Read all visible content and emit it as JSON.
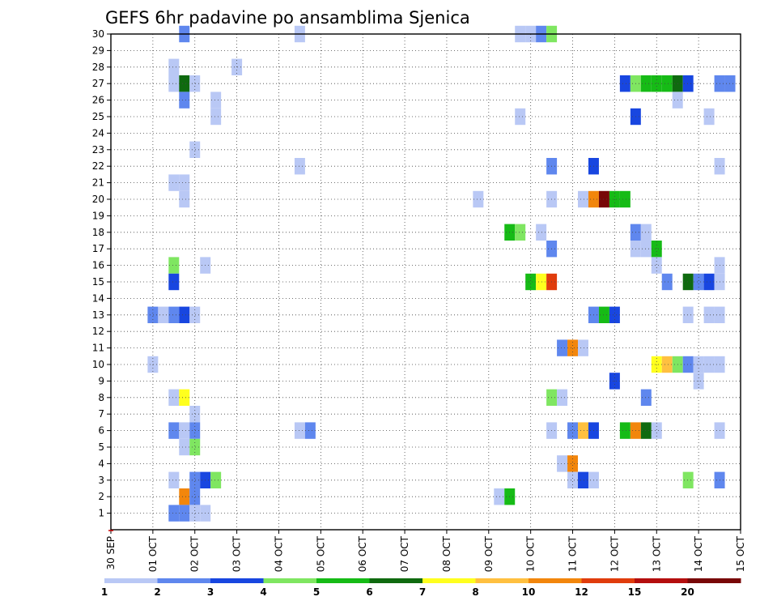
{
  "chart_data": {
    "type": "heatmap",
    "title": "GEFS 6hr padavine po ansamblima Sjenica",
    "xlabel": "",
    "ylabel": "",
    "x_tick_labels": [
      "30 SEP",
      "01 OCT",
      "02 OCT",
      "03 OCT",
      "04 OCT",
      "05 OCT",
      "06 OCT",
      "07 OCT",
      "08 OCT",
      "09 OCT",
      "10 OCT",
      "11 OCT",
      "12 OCT",
      "13 OCT",
      "14 OCT",
      "15 OCT"
    ],
    "y_tick_labels": [
      "1",
      "2",
      "3",
      "4",
      "5",
      "6",
      "7",
      "8",
      "9",
      "10",
      "11",
      "12",
      "13",
      "14",
      "15",
      "16",
      "17",
      "18",
      "19",
      "20",
      "21",
      "22",
      "23",
      "24",
      "25",
      "26",
      "27",
      "28",
      "29",
      "30"
    ],
    "x_range_days": [
      0,
      15
    ],
    "y_range": [
      0,
      30
    ],
    "grid": "dotted",
    "colorbar": {
      "labels": [
        "1",
        "2",
        "3",
        "4",
        "5",
        "6",
        "7",
        "8",
        "10",
        "12",
        "15",
        "20"
      ],
      "colors": [
        "#b9c8f5",
        "#5f87ee",
        "#1846e0",
        "#7fe661",
        "#16bb16",
        "#0f6a0f",
        "#ffff1e",
        "#ffc040",
        "#f2860c",
        "#e03c0c",
        "#b40e0e",
        "#780707"
      ]
    },
    "cells": [
      {
        "m": 30,
        "x": 1.75,
        "c": 1
      },
      {
        "m": 30,
        "x": 4.5,
        "c": 0
      },
      {
        "m": 30,
        "x": 9.75,
        "c": 0
      },
      {
        "m": 30,
        "x": 10,
        "c": 0
      },
      {
        "m": 30,
        "x": 10.25,
        "c": 1
      },
      {
        "m": 30,
        "x": 10.5,
        "c": 3
      },
      {
        "m": 28,
        "x": 1.5,
        "c": 0
      },
      {
        "m": 28,
        "x": 3,
        "c": 0
      },
      {
        "m": 27,
        "x": 1.5,
        "c": 0
      },
      {
        "m": 27,
        "x": 1.75,
        "c": 5
      },
      {
        "m": 27,
        "x": 2,
        "c": 0
      },
      {
        "m": 27,
        "x": 12.25,
        "c": 2
      },
      {
        "m": 27,
        "x": 12.5,
        "c": 3
      },
      {
        "m": 27,
        "x": 12.75,
        "c": 4
      },
      {
        "m": 27,
        "x": 13,
        "c": 4
      },
      {
        "m": 27,
        "x": 13.25,
        "c": 4
      },
      {
        "m": 27,
        "x": 13.5,
        "c": 5
      },
      {
        "m": 27,
        "x": 13.75,
        "c": 2
      },
      {
        "m": 27,
        "x": 14.5,
        "c": 1
      },
      {
        "m": 27,
        "x": 14.75,
        "c": 1
      },
      {
        "m": 26,
        "x": 1.75,
        "c": 1
      },
      {
        "m": 26,
        "x": 2.5,
        "c": 0
      },
      {
        "m": 26,
        "x": 13.5,
        "c": 0
      },
      {
        "m": 25,
        "x": 2.5,
        "c": 0
      },
      {
        "m": 25,
        "x": 9.75,
        "c": 0
      },
      {
        "m": 25,
        "x": 12.5,
        "c": 2
      },
      {
        "m": 25,
        "x": 14.25,
        "c": 0
      },
      {
        "m": 23,
        "x": 2,
        "c": 0
      },
      {
        "m": 22,
        "x": 4.5,
        "c": 0
      },
      {
        "m": 22,
        "x": 10.5,
        "c": 1
      },
      {
        "m": 22,
        "x": 11.5,
        "c": 2
      },
      {
        "m": 22,
        "x": 14.5,
        "c": 0
      },
      {
        "m": 21,
        "x": 1.5,
        "c": 0
      },
      {
        "m": 21,
        "x": 1.75,
        "c": 0
      },
      {
        "m": 20,
        "x": 1.75,
        "c": 0
      },
      {
        "m": 20,
        "x": 8.75,
        "c": 0
      },
      {
        "m": 20,
        "x": 10.5,
        "c": 0
      },
      {
        "m": 20,
        "x": 11.25,
        "c": 0
      },
      {
        "m": 20,
        "x": 11.5,
        "c": 8
      },
      {
        "m": 20,
        "x": 11.75,
        "c": 11
      },
      {
        "m": 20,
        "x": 12,
        "c": 4
      },
      {
        "m": 20,
        "x": 12.25,
        "c": 4
      },
      {
        "m": 18,
        "x": 9.5,
        "c": 4
      },
      {
        "m": 18,
        "x": 9.75,
        "c": 3
      },
      {
        "m": 18,
        "x": 10.25,
        "c": 0
      },
      {
        "m": 18,
        "x": 12.5,
        "c": 1
      },
      {
        "m": 18,
        "x": 12.75,
        "c": 0
      },
      {
        "m": 17,
        "x": 10.5,
        "c": 1
      },
      {
        "m": 17,
        "x": 12.5,
        "c": 0
      },
      {
        "m": 17,
        "x": 12.75,
        "c": 0
      },
      {
        "m": 17,
        "x": 13,
        "c": 4
      },
      {
        "m": 16,
        "x": 1.5,
        "c": 3
      },
      {
        "m": 16,
        "x": 2.25,
        "c": 0
      },
      {
        "m": 16,
        "x": 13,
        "c": 0
      },
      {
        "m": 16,
        "x": 14.5,
        "c": 0
      },
      {
        "m": 15,
        "x": 1.5,
        "c": 2
      },
      {
        "m": 15,
        "x": 10,
        "c": 4
      },
      {
        "m": 15,
        "x": 10.25,
        "c": 6
      },
      {
        "m": 15,
        "x": 10.5,
        "c": 9
      },
      {
        "m": 15,
        "x": 13.25,
        "c": 1
      },
      {
        "m": 15,
        "x": 13.75,
        "c": 5
      },
      {
        "m": 15,
        "x": 14,
        "c": 1
      },
      {
        "m": 15,
        "x": 14.25,
        "c": 2
      },
      {
        "m": 15,
        "x": 14.5,
        "c": 0
      },
      {
        "m": 13,
        "x": 1,
        "c": 1
      },
      {
        "m": 13,
        "x": 1.25,
        "c": 0
      },
      {
        "m": 13,
        "x": 1.5,
        "c": 1
      },
      {
        "m": 13,
        "x": 1.75,
        "c": 2
      },
      {
        "m": 13,
        "x": 2,
        "c": 0
      },
      {
        "m": 13,
        "x": 11.5,
        "c": 1
      },
      {
        "m": 13,
        "x": 11.75,
        "c": 4
      },
      {
        "m": 13,
        "x": 12,
        "c": 2
      },
      {
        "m": 13,
        "x": 13.75,
        "c": 0
      },
      {
        "m": 13,
        "x": 14.25,
        "c": 0
      },
      {
        "m": 13,
        "x": 14.5,
        "c": 0
      },
      {
        "m": 11,
        "x": 10.75,
        "c": 1
      },
      {
        "m": 11,
        "x": 11,
        "c": 8
      },
      {
        "m": 11,
        "x": 11.25,
        "c": 0
      },
      {
        "m": 10,
        "x": 1,
        "c": 0
      },
      {
        "m": 10,
        "x": 13,
        "c": 6
      },
      {
        "m": 10,
        "x": 13.25,
        "c": 7
      },
      {
        "m": 10,
        "x": 13.5,
        "c": 3
      },
      {
        "m": 10,
        "x": 13.75,
        "c": 1
      },
      {
        "m": 10,
        "x": 14,
        "c": 0
      },
      {
        "m": 10,
        "x": 14.25,
        "c": 0
      },
      {
        "m": 10,
        "x": 14.5,
        "c": 0
      },
      {
        "m": 9,
        "x": 12,
        "c": 2
      },
      {
        "m": 9,
        "x": 14,
        "c": 0
      },
      {
        "m": 8,
        "x": 1.5,
        "c": 0
      },
      {
        "m": 8,
        "x": 1.75,
        "c": 6
      },
      {
        "m": 8,
        "x": 10.5,
        "c": 3
      },
      {
        "m": 8,
        "x": 10.75,
        "c": 0
      },
      {
        "m": 8,
        "x": 12.75,
        "c": 1
      },
      {
        "m": 7,
        "x": 2,
        "c": 0
      },
      {
        "m": 6,
        "x": 1.5,
        "c": 1
      },
      {
        "m": 6,
        "x": 1.75,
        "c": 0
      },
      {
        "m": 6,
        "x": 2,
        "c": 1
      },
      {
        "m": 6,
        "x": 4.5,
        "c": 0
      },
      {
        "m": 6,
        "x": 4.75,
        "c": 1
      },
      {
        "m": 6,
        "x": 10.5,
        "c": 0
      },
      {
        "m": 6,
        "x": 11,
        "c": 1
      },
      {
        "m": 6,
        "x": 11.25,
        "c": 7
      },
      {
        "m": 6,
        "x": 11.5,
        "c": 2
      },
      {
        "m": 6,
        "x": 12.25,
        "c": 4
      },
      {
        "m": 6,
        "x": 12.5,
        "c": 8
      },
      {
        "m": 6,
        "x": 12.75,
        "c": 5
      },
      {
        "m": 6,
        "x": 13,
        "c": 0
      },
      {
        "m": 6,
        "x": 14.5,
        "c": 0
      },
      {
        "m": 5,
        "x": 1.75,
        "c": 0
      },
      {
        "m": 5,
        "x": 2,
        "c": 3
      },
      {
        "m": 4,
        "x": 10.75,
        "c": 0
      },
      {
        "m": 4,
        "x": 11,
        "c": 8
      },
      {
        "m": 3,
        "x": 1.5,
        "c": 0
      },
      {
        "m": 3,
        "x": 2,
        "c": 1
      },
      {
        "m": 3,
        "x": 2.25,
        "c": 2
      },
      {
        "m": 3,
        "x": 2.5,
        "c": 3
      },
      {
        "m": 3,
        "x": 11,
        "c": 0
      },
      {
        "m": 3,
        "x": 11.25,
        "c": 2
      },
      {
        "m": 3,
        "x": 11.5,
        "c": 0
      },
      {
        "m": 3,
        "x": 13.75,
        "c": 3
      },
      {
        "m": 3,
        "x": 14.5,
        "c": 1
      },
      {
        "m": 2,
        "x": 1.75,
        "c": 8
      },
      {
        "m": 2,
        "x": 2,
        "c": 1
      },
      {
        "m": 2,
        "x": 9.25,
        "c": 0
      },
      {
        "m": 2,
        "x": 9.5,
        "c": 4
      },
      {
        "m": 1,
        "x": 1.5,
        "c": 1
      },
      {
        "m": 1,
        "x": 1.75,
        "c": 1
      },
      {
        "m": 1,
        "x": 2,
        "c": 0
      },
      {
        "m": 1,
        "x": 2.25,
        "c": 0
      }
    ]
  }
}
